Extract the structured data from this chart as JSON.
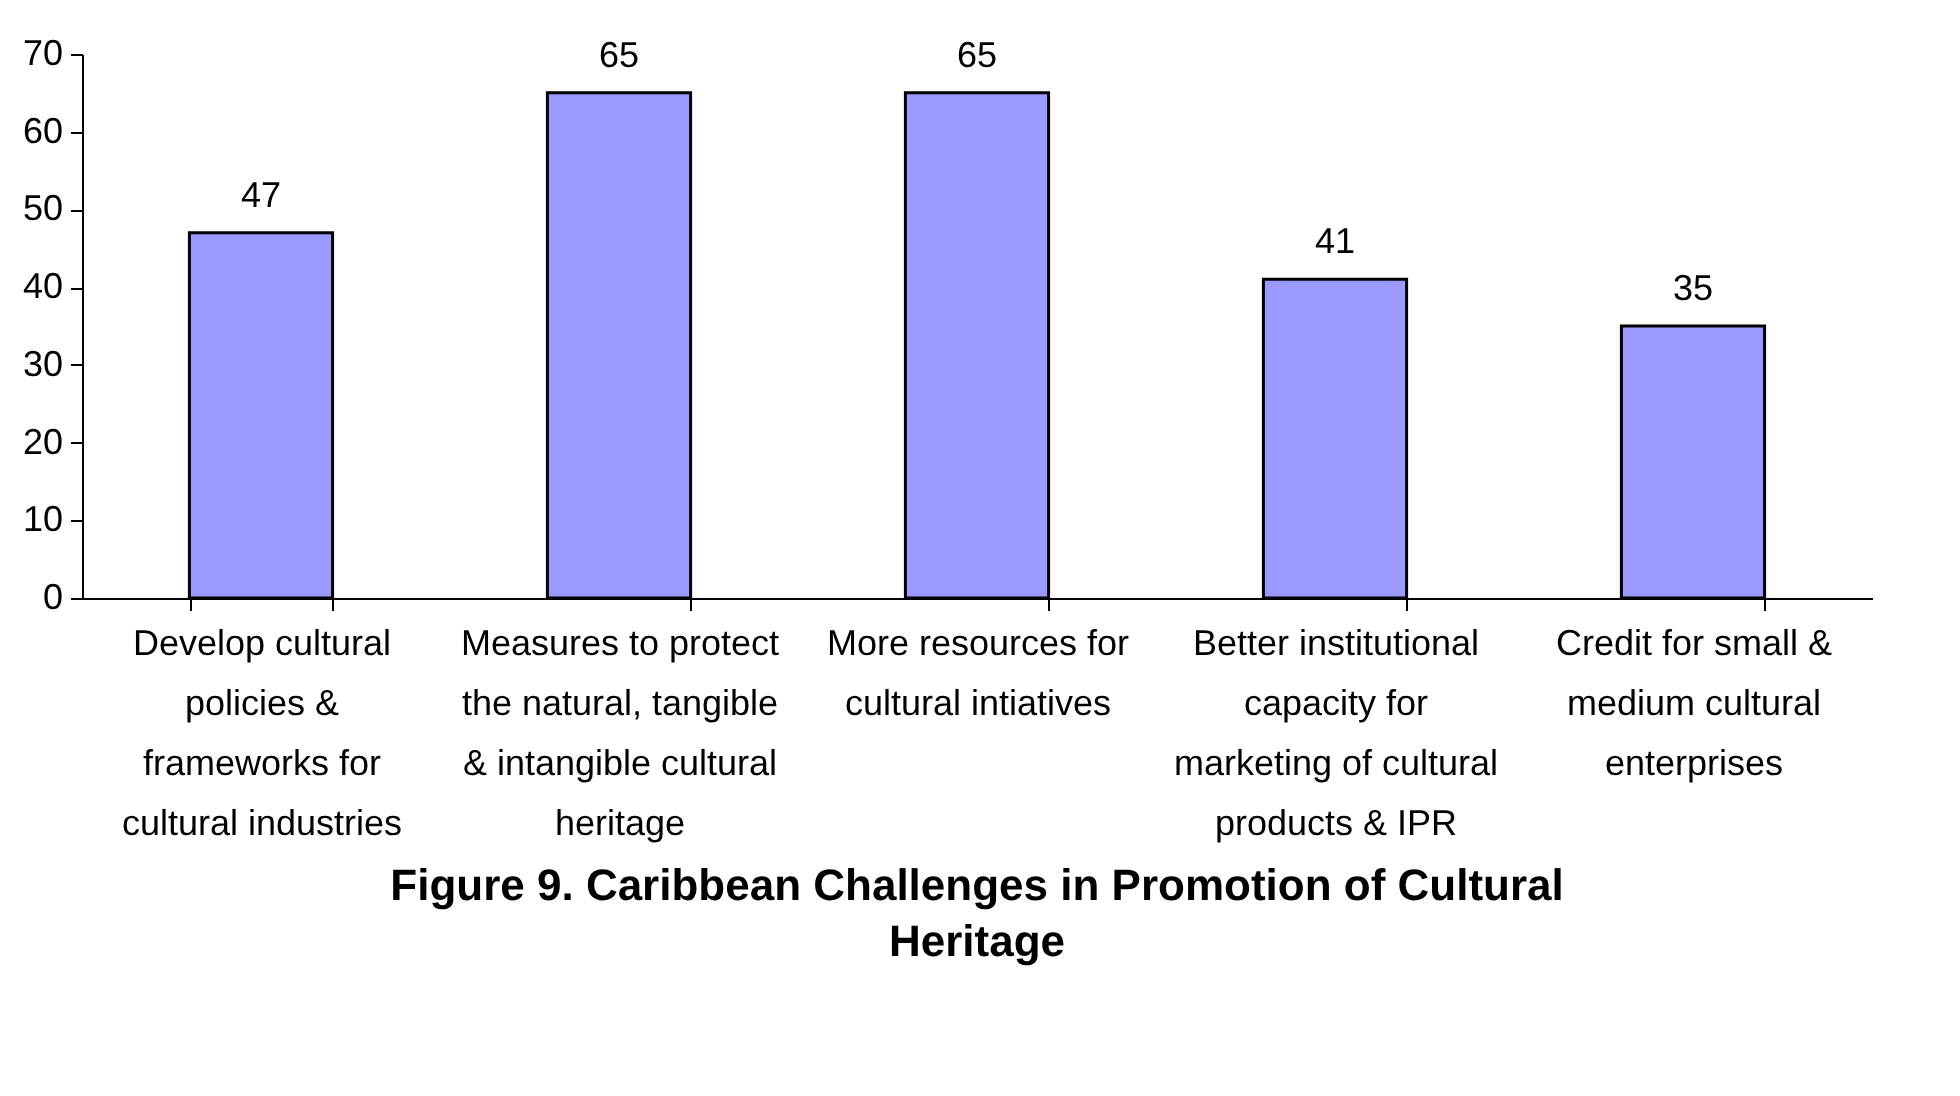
{
  "chart_data": {
    "type": "bar",
    "title": "Figure 9. Caribbean Challenges in Promotion of Cultural Heritage",
    "categories": [
      "Develop cultural policies & frameworks for cultural industries",
      "Measures to protect the natural, tangible & intangible cultural heritage",
      "More resources for cultural intiatives",
      "Better institutional capacity for marketing of cultural products & IPR",
      "Credit for small & medium cultural enterprises"
    ],
    "values": [
      47,
      65,
      65,
      41,
      35
    ],
    "color": "#9999ff",
    "ylim": [
      0,
      70
    ],
    "yticks": [
      0,
      10,
      20,
      30,
      40,
      50,
      60,
      70
    ],
    "grid": false,
    "data_labels": true
  }
}
